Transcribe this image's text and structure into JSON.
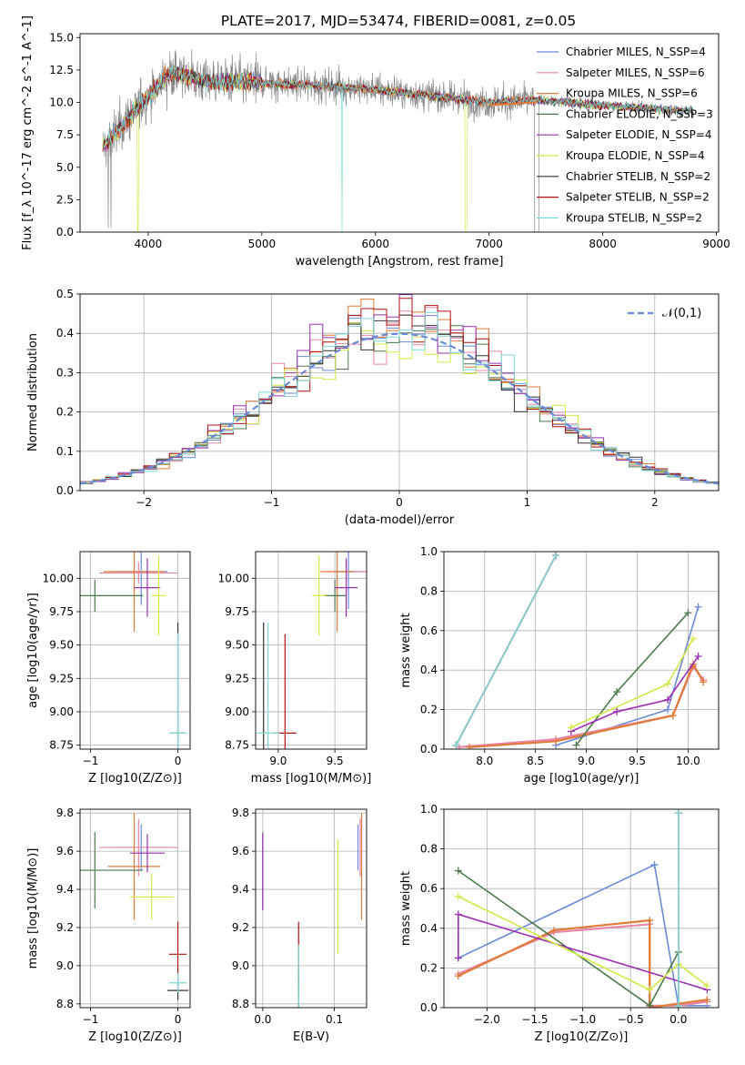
{
  "figure": {
    "title": "PLATE=2017, MJD=53474, FIBERID=0081, z=0.05"
  },
  "legend_entries": [
    {
      "label": "Chabrier MILES, N_SSP=4",
      "color": "#6a8ad6"
    },
    {
      "label": "Salpeter MILES, N_SSP=6",
      "color": "#e888a8"
    },
    {
      "label": "Kroupa MILES, N_SSP=6",
      "color": "#e07b3a"
    },
    {
      "label": "Chabrier ELODIE, N_SSP=3",
      "color": "#4d7a4d"
    },
    {
      "label": "Salpeter ELODIE, N_SSP=4",
      "color": "#9b30b0"
    },
    {
      "label": "Kroupa ELODIE, N_SSP=4",
      "color": "#d4e84a"
    },
    {
      "label": "Chabrier STELIB, N_SSP=2",
      "color": "#333333"
    },
    {
      "label": "Salpeter STELIB, N_SSP=2",
      "color": "#b01010"
    },
    {
      "label": "Kroupa STELIB, N_SSP=2",
      "color": "#7fd8d8"
    }
  ],
  "chart_data": [
    {
      "id": "spectrum",
      "type": "line",
      "xlabel": "wavelength [Angstrom, rest frame]",
      "ylabel": "Flux [f_λ 10^-17 erg cm^-2 s^-1 A^-1]",
      "xlim": [
        3400,
        9020
      ],
      "ylim": [
        0,
        15.3
      ],
      "xticks": [
        "4000",
        "5000",
        "6000",
        "7000",
        "8000",
        "9000"
      ],
      "yticks": [
        "0.0",
        "2.5",
        "5.0",
        "7.5",
        "10.0",
        "12.5",
        "15.0"
      ],
      "continuum_shape": [
        [
          3600,
          6.5
        ],
        [
          3800,
          8.5
        ],
        [
          4000,
          10.5
        ],
        [
          4200,
          12.3
        ],
        [
          4500,
          11.7
        ],
        [
          5000,
          11.5
        ],
        [
          5500,
          11.3
        ],
        [
          6000,
          11.0
        ],
        [
          6500,
          10.5
        ],
        [
          7000,
          10.0
        ],
        [
          7400,
          10.2
        ],
        [
          8000,
          9.8
        ],
        [
          8800,
          9.3
        ]
      ],
      "grid": false
    },
    {
      "id": "residuals",
      "type": "histogram",
      "xlabel": "(data-model)/error",
      "ylabel": "Normed distribution",
      "xlim": [
        -2.5,
        2.5
      ],
      "ylim": [
        0,
        0.5
      ],
      "xticks": [
        "−2",
        "−1",
        "0",
        "1",
        "2"
      ],
      "yticks": [
        "0.0",
        "0.1",
        "0.2",
        "0.3",
        "0.4",
        "0.5"
      ],
      "bin_width": 0.1,
      "reference_curve": "𝒩(0,1)",
      "grid": true
    },
    {
      "id": "age_vs_Z",
      "type": "errorbar",
      "xlabel": "Z [log10(Z/Z⊙)]",
      "ylabel": "age  [log10(age/yr)]",
      "xlim": [
        -1.12,
        0.14
      ],
      "ylim": [
        8.72,
        10.2
      ],
      "xticks": [
        "−1",
        "0"
      ],
      "yticks": [
        "8.75",
        "9.00",
        "9.25",
        "9.50",
        "9.75",
        "10.00"
      ],
      "series": [
        {
          "x": -0.42,
          "y": 10.05,
          "xerr": 0.3,
          "yerr": 0.25
        },
        {
          "x": -0.45,
          "y": 10.04,
          "xerr": 0.45,
          "yerr": 0.08
        },
        {
          "x": -0.5,
          "y": 10.05,
          "xerr": 0.35,
          "yerr": 0.45
        },
        {
          "x": -0.95,
          "y": 9.87,
          "xerr": 0.55,
          "yerr": 0.12
        },
        {
          "x": -0.35,
          "y": 9.93,
          "xerr": 0.15,
          "yerr": 0.22
        },
        {
          "x": -0.22,
          "y": 9.87,
          "xerr": 0.08,
          "yerr": 0.3
        },
        {
          "x": 0.0,
          "y": 8.84,
          "xerr": 0.08,
          "yerr": 0.83
        },
        {
          "x": 0.0,
          "y": 8.84,
          "xerr": 0.02,
          "yerr": 0.02
        },
        {
          "x": 0.0,
          "y": 8.84,
          "xerr": 0.1,
          "yerr": 0.75
        }
      ]
    },
    {
      "id": "age_vs_mass",
      "type": "errorbar",
      "xlabel": "mass [log10(M/M⊙)]",
      "ylabel": "",
      "xlim": [
        8.8,
        9.78
      ],
      "ylim": [
        8.72,
        10.2
      ],
      "xticks": [
        "9.0",
        "9.5"
      ],
      "yticks": [
        "8.75",
        "9.00",
        "9.25",
        "9.50",
        "9.75",
        "10.00"
      ],
      "series": [
        {
          "x": 9.62,
          "y": 10.05,
          "xerr": 0.12,
          "yerr": 0.28
        },
        {
          "x": 9.6,
          "y": 10.05,
          "xerr": 0.18,
          "yerr": 0.08
        },
        {
          "x": 9.52,
          "y": 10.05,
          "xerr": 0.15,
          "yerr": 0.45
        },
        {
          "x": 9.5,
          "y": 9.87,
          "xerr": 0.1,
          "yerr": 0.12
        },
        {
          "x": 9.6,
          "y": 9.93,
          "xerr": 0.1,
          "yerr": 0.22
        },
        {
          "x": 9.36,
          "y": 9.87,
          "xerr": 0.06,
          "yerr": 0.3
        },
        {
          "x": 8.87,
          "y": 8.84,
          "xerr": 0.02,
          "yerr": 0.83
        },
        {
          "x": 9.06,
          "y": 8.84,
          "xerr": 0.1,
          "yerr": 0.74
        },
        {
          "x": 8.91,
          "y": 8.84,
          "xerr": 0.1,
          "yerr": 0.83
        }
      ]
    },
    {
      "id": "mass_weight_vs_age",
      "type": "line",
      "xlabel": "age  [log10(age/yr)]",
      "ylabel": "mass weight",
      "xlim": [
        7.6,
        10.3
      ],
      "ylim": [
        0,
        1.0
      ],
      "xticks": [
        "8.0",
        "8.5",
        "9.0",
        "9.5",
        "10.0"
      ],
      "yticks": [
        "0.0",
        "0.2",
        "0.4",
        "0.6",
        "0.8",
        "1.0"
      ],
      "series": [
        {
          "points": [
            [
              8.7,
              0.02
            ],
            [
              9.8,
              0.2
            ],
            [
              10.1,
              0.72
            ]
          ]
        },
        {
          "points": [
            [
              7.75,
              0.01
            ],
            [
              8.7,
              0.05
            ],
            [
              9.85,
              0.17
            ],
            [
              10.05,
              0.42
            ],
            [
              10.15,
              0.35
            ]
          ]
        },
        {
          "points": [
            [
              7.85,
              0.01
            ],
            [
              8.7,
              0.04
            ],
            [
              9.85,
              0.17
            ],
            [
              10.05,
              0.43
            ],
            [
              10.15,
              0.34
            ]
          ]
        },
        {
          "points": [
            [
              8.9,
              0.02
            ],
            [
              9.3,
              0.29
            ],
            [
              10.0,
              0.69
            ]
          ]
        },
        {
          "points": [
            [
              8.85,
              0.09
            ],
            [
              9.3,
              0.19
            ],
            [
              9.8,
              0.25
            ],
            [
              10.1,
              0.47
            ]
          ]
        },
        {
          "points": [
            [
              8.85,
              0.11
            ],
            [
              9.8,
              0.33
            ],
            [
              10.05,
              0.56
            ]
          ]
        },
        {
          "points": [
            [
              7.72,
              0.02
            ],
            [
              8.7,
              0.98
            ]
          ]
        },
        {
          "points": [
            [
              7.72,
              0.02
            ],
            [
              8.7,
              0.98
            ]
          ]
        },
        {
          "points": [
            [
              7.72,
              0.02
            ],
            [
              8.7,
              0.98
            ]
          ]
        }
      ]
    },
    {
      "id": "mass_vs_Z",
      "type": "errorbar",
      "xlabel": "Z [log10(Z/Z⊙)]",
      "ylabel": "mass [log10(M/M⊙)]",
      "xlim": [
        -1.12,
        0.14
      ],
      "ylim": [
        8.78,
        9.82
      ],
      "xticks": [
        "−1",
        "0"
      ],
      "yticks": [
        "8.8",
        "9.0",
        "9.2",
        "9.4",
        "9.6",
        "9.8"
      ],
      "series": [
        {
          "x": -0.42,
          "y": 9.62,
          "xerr": 0.3,
          "yerr": 0.12
        },
        {
          "x": -0.45,
          "y": 9.62,
          "xerr": 0.45,
          "yerr": 0.15
        },
        {
          "x": -0.5,
          "y": 9.52,
          "xerr": 0.3,
          "yerr": 0.28
        },
        {
          "x": -0.95,
          "y": 9.5,
          "xerr": 0.55,
          "yerr": 0.2
        },
        {
          "x": -0.35,
          "y": 9.59,
          "xerr": 0.2,
          "yerr": 0.1
        },
        {
          "x": -0.3,
          "y": 9.36,
          "xerr": 0.25,
          "yerr": 0.12
        },
        {
          "x": 0.0,
          "y": 8.87,
          "xerr": 0.12,
          "yerr": 0.05
        },
        {
          "x": 0.0,
          "y": 9.06,
          "xerr": 0.1,
          "yerr": 0.17
        },
        {
          "x": 0.0,
          "y": 8.91,
          "xerr": 0.1,
          "yerr": 0.05
        }
      ]
    },
    {
      "id": "mass_vs_EBV",
      "type": "errorbar",
      "xlabel": "E(B-V)",
      "ylabel": "",
      "xlim": [
        -0.01,
        0.145
      ],
      "ylim": [
        8.78,
        9.82
      ],
      "xticks": [
        "0.0",
        "0.1"
      ],
      "yticks": [
        "8.8",
        "9.0",
        "9.2",
        "9.4",
        "9.6",
        "9.8"
      ],
      "series": [
        {
          "x": 0.133,
          "y": 9.62,
          "xerr": 0.0,
          "yerr": 0.12
        },
        {
          "x": 0.136,
          "y": 9.62,
          "xerr": 0.0,
          "yerr": 0.15
        },
        {
          "x": 0.138,
          "y": 9.52,
          "xerr": 0.0,
          "yerr": 0.28
        },
        {
          "x": 0.0,
          "y": 9.5,
          "xerr": 0.0,
          "yerr": 0.2
        },
        {
          "x": 0.0,
          "y": 9.49,
          "xerr": 0.0,
          "yerr": 0.2
        },
        {
          "x": 0.105,
          "y": 9.36,
          "xerr": 0.0,
          "yerr": 0.3
        },
        {
          "x": 0.05,
          "y": 8.87,
          "xerr": 0.0,
          "yerr": 0.1
        },
        {
          "x": 0.05,
          "y": 9.06,
          "xerr": 0.0,
          "yerr": 0.17
        },
        {
          "x": 0.05,
          "y": 8.91,
          "xerr": 0.0,
          "yerr": 0.2
        }
      ]
    },
    {
      "id": "mass_weight_vs_Z",
      "type": "line",
      "xlabel": "Z [log10(Z/Z⊙)]",
      "ylabel": "mass weight",
      "xlim": [
        -2.45,
        0.42
      ],
      "ylim": [
        0,
        1.0
      ],
      "xticks": [
        "−2.0",
        "−1.5",
        "−1.0",
        "−0.5",
        "0.0"
      ],
      "yticks": [
        "0.0",
        "0.2",
        "0.4",
        "0.6",
        "0.8",
        "1.0"
      ],
      "series": [
        {
          "points": [
            [
              -2.3,
              0.25
            ],
            [
              -0.25,
              0.72
            ],
            [
              0.0,
              0.01
            ],
            [
              0.3,
              0.01
            ]
          ]
        },
        {
          "points": [
            [
              -2.3,
              0.17
            ],
            [
              -1.3,
              0.38
            ],
            [
              -0.3,
              0.42
            ],
            [
              -0.3,
              0.01
            ],
            [
              0.0,
              0.01
            ],
            [
              0.3,
              0.03
            ]
          ]
        },
        {
          "points": [
            [
              -2.3,
              0.16
            ],
            [
              -1.3,
              0.39
            ],
            [
              -0.3,
              0.44
            ],
            [
              -0.3,
              0.0
            ],
            [
              0.0,
              0.02
            ],
            [
              0.3,
              0.04
            ]
          ]
        },
        {
          "points": [
            [
              -2.3,
              0.69
            ],
            [
              -0.3,
              0.01
            ],
            [
              0.0,
              0.28
            ]
          ]
        },
        {
          "points": [
            [
              -2.3,
              0.25
            ],
            [
              -2.3,
              0.47
            ],
            [
              0.3,
              0.09
            ]
          ]
        },
        {
          "points": [
            [
              -2.3,
              0.56
            ],
            [
              -0.3,
              0.09
            ],
            [
              0.0,
              0.22
            ],
            [
              0.3,
              0.11
            ]
          ]
        },
        {
          "points": [
            [
              0.0,
              0.98
            ],
            [
              0.0,
              0.01
            ]
          ]
        },
        {
          "points": [
            [
              0.0,
              0.98
            ],
            [
              0.0,
              0.01
            ]
          ]
        },
        {
          "points": [
            [
              0.0,
              0.98
            ],
            [
              0.0,
              0.01
            ]
          ]
        }
      ]
    }
  ]
}
